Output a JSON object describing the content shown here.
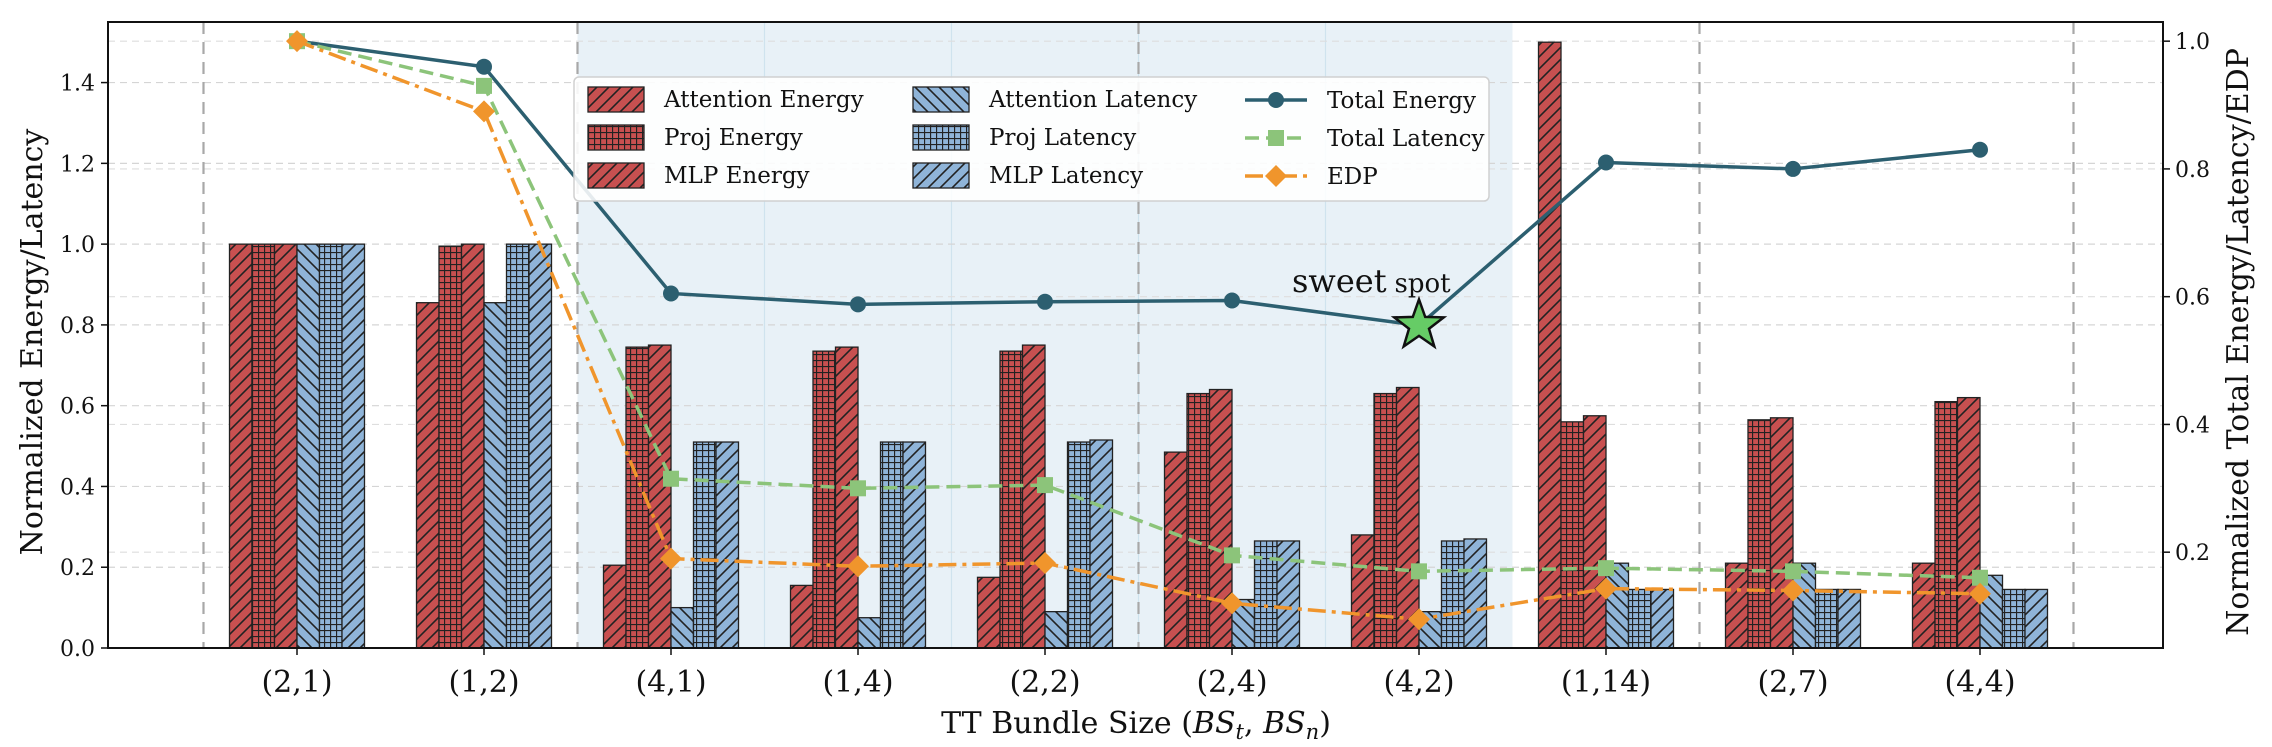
{
  "chart_data": {
    "type": "bar",
    "xlabel": "TT Bundle Size (BS_t, BS_n)",
    "ylabel": "Normalized Energy/Latency",
    "y2label": "Normalized Total Energy/Latency/EDP",
    "categories": [
      "(2,1)",
      "(1,2)",
      "(4,1)",
      "(1,4)",
      "(2,2)",
      "(2,4)",
      "(4,2)",
      "(1,14)",
      "(2,7)",
      "(4,4)"
    ],
    "ylim": [
      0,
      1.55
    ],
    "y2lim": [
      0.05,
      1.03
    ],
    "yticks": [
      "0.0",
      "0.2",
      "0.4",
      "0.6",
      "0.8",
      "1.0",
      "1.2",
      "1.4"
    ],
    "y2ticks": [
      "0.2",
      "0.4",
      "0.6",
      "0.8",
      "1.0"
    ],
    "grid": true,
    "legend_position": "top-center",
    "highlight_region": [
      "(4,1)",
      "(4,2)"
    ],
    "bar_series": [
      {
        "name": "Attention Energy",
        "color": "#c85050",
        "hatch": "diagonal",
        "values": [
          1.0,
          0.855,
          0.205,
          0.155,
          0.175,
          0.485,
          0.28,
          1.5,
          0.21,
          0.21
        ]
      },
      {
        "name": "Proj Energy",
        "color": "#c85050",
        "hatch": "grid",
        "values": [
          1.0,
          0.995,
          0.745,
          0.735,
          0.735,
          0.63,
          0.63,
          0.56,
          0.565,
          0.61
        ]
      },
      {
        "name": "MLP Energy",
        "color": "#c85050",
        "hatch": "diagonal",
        "values": [
          1.0,
          1.0,
          0.75,
          0.745,
          0.75,
          0.64,
          0.645,
          0.575,
          0.57,
          0.62
        ]
      },
      {
        "name": "Attention Latency",
        "color": "#8fb4d8",
        "hatch": "diagonal-back",
        "values": [
          1.0,
          0.855,
          0.1,
          0.075,
          0.09,
          0.12,
          0.09,
          0.21,
          0.21,
          0.18
        ]
      },
      {
        "name": "Proj Latency",
        "color": "#8fb4d8",
        "hatch": "grid",
        "values": [
          1.0,
          1.0,
          0.51,
          0.51,
          0.51,
          0.265,
          0.265,
          0.145,
          0.145,
          0.145
        ]
      },
      {
        "name": "MLP Latency",
        "color": "#8fb4d8",
        "hatch": "diagonal",
        "values": [
          1.0,
          1.0,
          0.51,
          0.51,
          0.515,
          0.265,
          0.27,
          0.145,
          0.145,
          0.145
        ]
      }
    ],
    "line_series": [
      {
        "name": "Total Energy",
        "color": "#2c5f70",
        "marker": "circle",
        "style": "solid",
        "values": [
          1.0,
          0.96,
          0.605,
          0.588,
          0.592,
          0.594,
          0.555,
          0.81,
          0.8,
          0.83
        ]
      },
      {
        "name": "Total Latency",
        "color": "#8cc47a",
        "marker": "square",
        "style": "dashed",
        "values": [
          1.0,
          0.93,
          0.315,
          0.3,
          0.305,
          0.195,
          0.17,
          0.175,
          0.17,
          0.16
        ]
      },
      {
        "name": "EDP",
        "color": "#f0952c",
        "marker": "diamond",
        "style": "dashdot",
        "values": [
          1.0,
          0.89,
          0.19,
          0.178,
          0.183,
          0.12,
          0.095,
          0.143,
          0.14,
          0.135
        ]
      }
    ],
    "annotation": {
      "text_main": "sweet",
      "text_sub": "spot",
      "category": "(4,2)",
      "y2": 0.555
    }
  }
}
